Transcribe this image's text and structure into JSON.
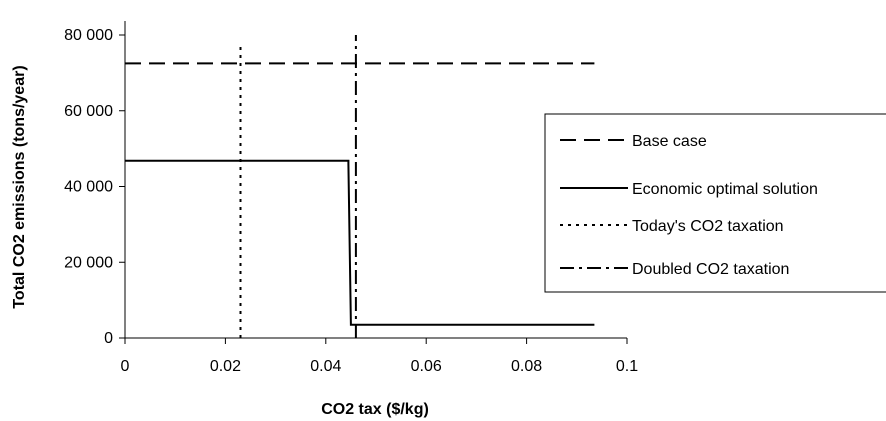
{
  "chart_data": {
    "type": "line",
    "title": "",
    "xlabel": "CO2 tax ($/kg)",
    "ylabel": "Total CO2 emissions (tons/year)",
    "xlim": [
      0,
      0.1
    ],
    "ylim": [
      0,
      80000
    ],
    "x_ticks": [
      0,
      0.02,
      0.04,
      0.06,
      0.08,
      0.1
    ],
    "x_tick_labels": [
      "0",
      "0.02",
      "0.04",
      "0.06",
      "0.08",
      "0.1"
    ],
    "y_ticks": [
      0,
      20000,
      40000,
      60000,
      80000
    ],
    "y_tick_labels": [
      "0",
      "20 000",
      "40 000",
      "60 000",
      "80 000"
    ],
    "grid": false,
    "legend_position": "right",
    "series": [
      {
        "name": "Base case",
        "style": "dashed",
        "color": "#000000",
        "points": [
          [
            0,
            72500
          ],
          [
            0.0935,
            72500
          ]
        ]
      },
      {
        "name": "Economic optimal solution",
        "style": "solid",
        "color": "#000000",
        "points": [
          [
            0,
            46800
          ],
          [
            0.0445,
            46800
          ],
          [
            0.0445,
            46000
          ],
          [
            0.045,
            3500
          ],
          [
            0.0935,
            3500
          ]
        ]
      },
      {
        "name": "Today's CO2 taxation",
        "style": "dotted",
        "color": "#000000",
        "points": [
          [
            0.023,
            0
          ],
          [
            0.023,
            78000
          ]
        ]
      },
      {
        "name": "Doubled CO2 taxation",
        "style": "dashdot",
        "color": "#000000",
        "points": [
          [
            0.046,
            0
          ],
          [
            0.046,
            80000
          ]
        ]
      }
    ]
  }
}
